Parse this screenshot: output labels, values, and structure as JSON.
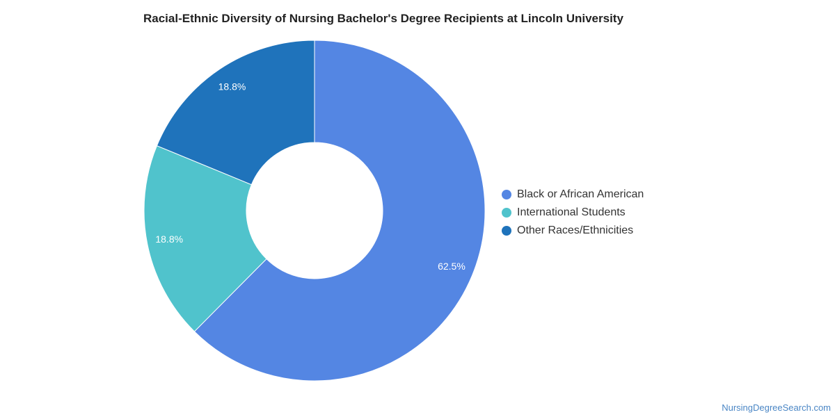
{
  "chart_data": {
    "type": "pie",
    "variant": "donut",
    "title": "Racial-Ethnic Diversity of Nursing Bachelor's Degree Recipients at Lincoln University",
    "slices": [
      {
        "name": "Black or African American",
        "value": 62.5,
        "label": "62.5%",
        "color": "#5486e3"
      },
      {
        "name": "International Students",
        "value": 18.8,
        "label": "18.8%",
        "color": "#50c3cc"
      },
      {
        "name": "Other Races/Ethnicities",
        "value": 18.8,
        "label": "18.8%",
        "color": "#1f73bb"
      }
    ],
    "legend_position": "right"
  },
  "watermark": "NursingDegreeSearch.com"
}
